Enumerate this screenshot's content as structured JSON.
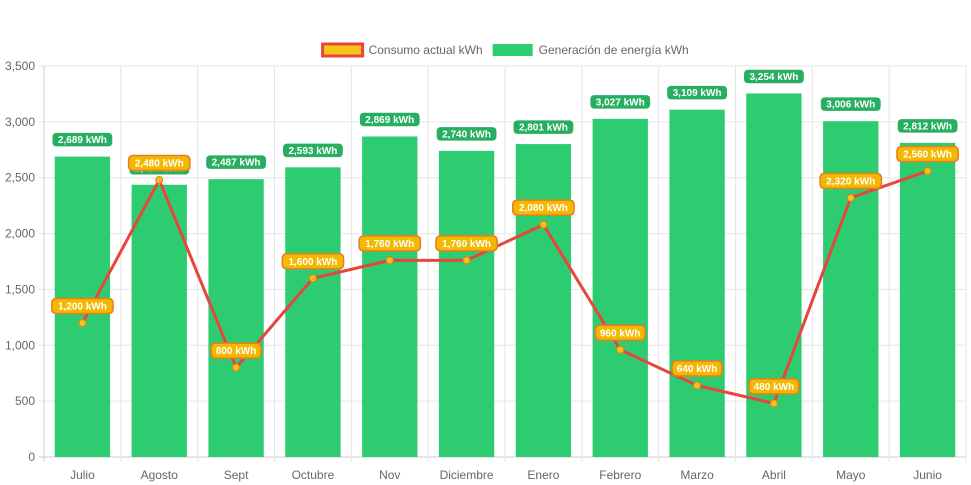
{
  "chart_data": {
    "type": "bar",
    "title": "",
    "xlabel": "",
    "ylabel": "",
    "categories": [
      "Julio",
      "Agosto",
      "Sept",
      "Octubre",
      "Nov",
      "Diciembre",
      "Enero",
      "Febrero",
      "Marzo",
      "Abril",
      "Mayo",
      "Junio"
    ],
    "ylim": [
      0,
      3500
    ],
    "yticks": [
      0,
      500,
      1000,
      1500,
      2000,
      2500,
      3000,
      3500
    ],
    "ytick_labels": [
      "0",
      "500",
      "1,000",
      "1,500",
      "2,000",
      "2,500",
      "3,000",
      "3,500"
    ],
    "grid": true,
    "legend_position": "top",
    "series": [
      {
        "name": "Consumo actual kWh",
        "kind": "line",
        "color": "#e8453c",
        "point_color": "#f5c518",
        "values": [
          1200,
          2480,
          800,
          1600,
          1760,
          1760,
          2080,
          960,
          640,
          480,
          2320,
          2560
        ],
        "labels": [
          "1,200 kWh",
          "2,480 kWh",
          "800 kWh",
          "1,600 kWh",
          "1,760 kWh",
          "1,760 kWh",
          "2,080 kWh",
          "960 kWh",
          "640 kWh",
          "480 kWh",
          "2,320 kWh",
          "2,560 kWh"
        ]
      },
      {
        "name": "Generación de energía kWh",
        "kind": "bar",
        "color": "#2ecc71",
        "values": [
          2689,
          2437,
          2487,
          2593,
          2869,
          2740,
          2801,
          3027,
          3109,
          3254,
          3006,
          2812
        ],
        "labels": [
          "2,689 kWh",
          "2,437 kWh",
          "2,487 kWh",
          "2,593 kWh",
          "2,869 kWh",
          "2,740 kWh",
          "2,801 kWh",
          "3,027 kWh",
          "3,109 kWh",
          "3,254 kWh",
          "3,006 kWh",
          "2,812 kWh"
        ]
      }
    ]
  }
}
